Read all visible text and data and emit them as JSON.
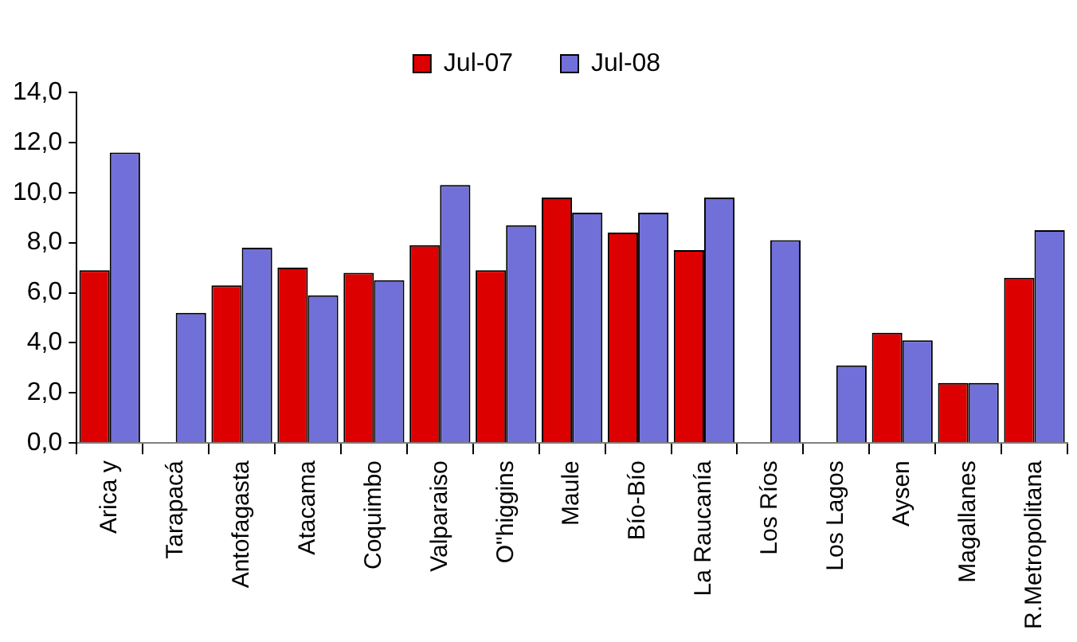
{
  "chart_data": {
    "type": "bar",
    "categories": [
      "Arica y",
      "Tarapacá",
      "Antofagasta",
      "Atacama",
      "Coquimbo",
      "Valparaiso",
      "O\"higgins",
      "Maule",
      "Bío-Bío",
      "La Raucanía",
      "Los Ríos",
      "Los Lagos",
      "Aysen",
      "Magallanes",
      "R.Metropolitana"
    ],
    "series": [
      {
        "name": "Jul-07",
        "color": "#dd0000",
        "values": [
          6.9,
          null,
          6.3,
          7.0,
          6.8,
          7.9,
          6.9,
          9.8,
          8.4,
          7.7,
          null,
          null,
          4.4,
          2.4,
          6.6
        ]
      },
      {
        "name": "Jul-08",
        "color": "#7070d8",
        "values": [
          11.6,
          5.2,
          7.8,
          5.9,
          6.5,
          10.3,
          8.7,
          9.2,
          9.2,
          9.8,
          8.1,
          3.1,
          4.1,
          2.4,
          8.5
        ]
      }
    ],
    "ylim": [
      0,
      14
    ],
    "yticks": [
      {
        "value": 0,
        "label": "0,0"
      },
      {
        "value": 2,
        "label": "2,0"
      },
      {
        "value": 4,
        "label": "4,0"
      },
      {
        "value": 6,
        "label": "6,0"
      },
      {
        "value": 8,
        "label": "8,0"
      },
      {
        "value": 10,
        "label": "10,0"
      },
      {
        "value": 12,
        "label": "12,0"
      },
      {
        "value": 14,
        "label": "14,0"
      }
    ],
    "grid": false,
    "legend": "top"
  }
}
